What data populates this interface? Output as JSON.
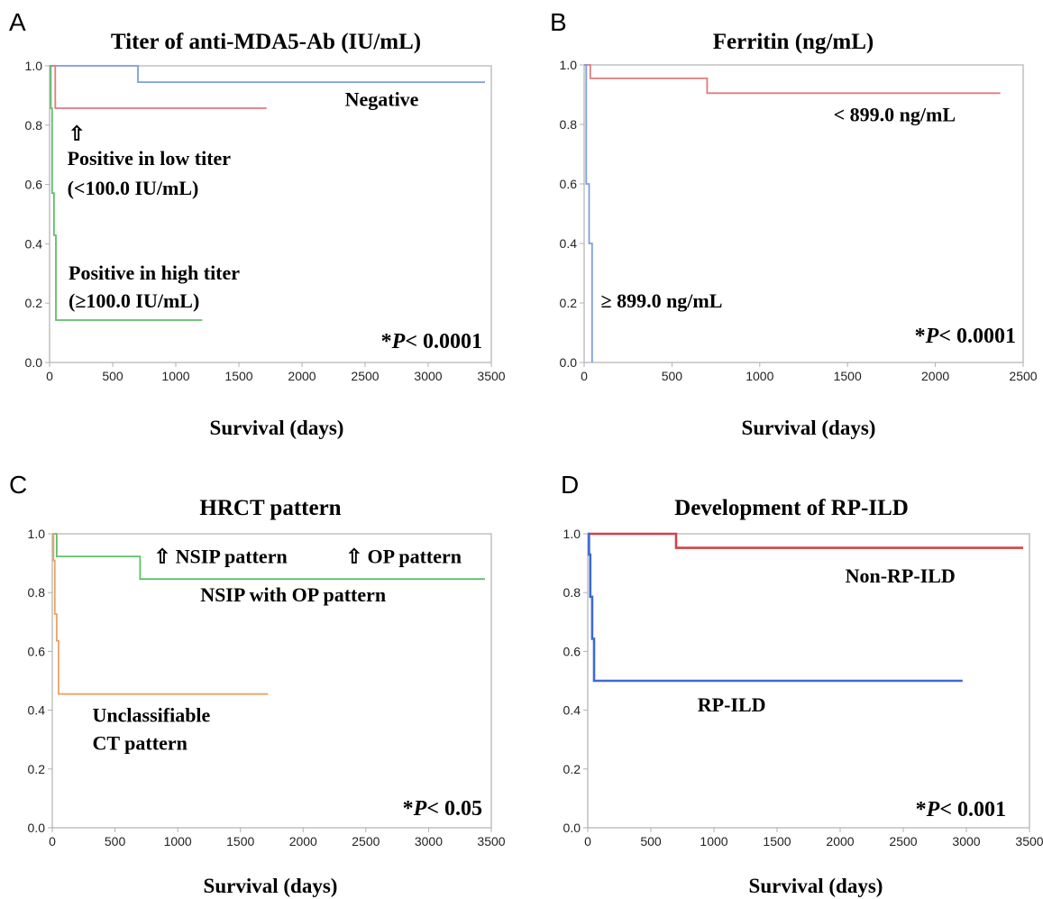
{
  "chart_data": [
    {
      "panel": "A",
      "type": "line",
      "title": "Titer of anti-MDA5-Ab (IU/mL)",
      "xlabel": "Survival (days)",
      "ylabel": "",
      "xlim": [
        0,
        3500
      ],
      "ylim": [
        0,
        1.0
      ],
      "xticks": [
        "0",
        "500",
        "1000",
        "1500",
        "2000",
        "2500",
        "3000",
        "3500"
      ],
      "yticks": [
        "0.0",
        "0.2",
        "0.4",
        "0.6",
        "0.8",
        "1.0"
      ],
      "pvalue": {
        "prefix": "*",
        "italic": "P",
        "suffix": "< 0.0001"
      },
      "series": [
        {
          "name": "Negative",
          "color": "#7c9fe2",
          "points": [
            [
              0,
              1.0
            ],
            [
              700,
              1.0
            ],
            [
              700,
              0.945
            ],
            [
              3450,
              0.945
            ]
          ]
        },
        {
          "name": "Positive in low titer",
          "color": "#e07b7f",
          "points": [
            [
              0,
              1.0
            ],
            [
              45,
              1.0
            ],
            [
              45,
              0.857
            ],
            [
              1720,
              0.857
            ]
          ]
        },
        {
          "name": "Positive in high titer",
          "color": "#5fbf6a",
          "points": [
            [
              0,
              1.0
            ],
            [
              10,
              1.0
            ],
            [
              10,
              0.857
            ],
            [
              20,
              0.857
            ],
            [
              20,
              0.571
            ],
            [
              35,
              0.571
            ],
            [
              35,
              0.429
            ],
            [
              50,
              0.429
            ],
            [
              50,
              0.143
            ],
            [
              1210,
              0.143
            ]
          ]
        }
      ],
      "annotations": [
        {
          "text": "Negative",
          "x": 2340,
          "y": 0.865
        },
        {
          "text": "⇧",
          "x": 150,
          "y": 0.75
        },
        {
          "text": "Positive in low titer",
          "x": 140,
          "y": 0.665
        },
        {
          "text": "(<100.0 IU/mL)",
          "x": 140,
          "y": 0.565
        },
        {
          "text": "Positive in high titer",
          "x": 150,
          "y": 0.28
        },
        {
          "text": "(≥100.0 IU/mL)",
          "x": 150,
          "y": 0.185
        }
      ]
    },
    {
      "panel": "B",
      "type": "line",
      "title": "Ferritin (ng/mL)",
      "xlabel": "Survival (days)",
      "ylabel": "",
      "xlim": [
        0,
        2500
      ],
      "ylim": [
        0,
        1.0
      ],
      "xticks": [
        "0",
        "500",
        "1000",
        "1500",
        "2000",
        "2500"
      ],
      "yticks": [
        "0.0",
        "0.2",
        "0.4",
        "0.6",
        "0.8",
        "1.0"
      ],
      "pvalue": {
        "prefix": "*",
        "italic": "P",
        "suffix": "< 0.0001"
      },
      "series": [
        {
          "name": "< 899.0 ng/mL",
          "color": "#e07b7f",
          "points": [
            [
              0,
              1.0
            ],
            [
              35,
              1.0
            ],
            [
              35,
              0.955
            ],
            [
              700,
              0.955
            ],
            [
              700,
              0.905
            ],
            [
              2370,
              0.905
            ]
          ]
        },
        {
          "name": "≥ 899.0 ng/mL",
          "color": "#7c9fe2",
          "points": [
            [
              0,
              1.0
            ],
            [
              12,
              1.0
            ],
            [
              12,
              0.6
            ],
            [
              28,
              0.6
            ],
            [
              28,
              0.4
            ],
            [
              45,
              0.4
            ],
            [
              45,
              0.0
            ]
          ]
        }
      ],
      "annotations": [
        {
          "text": "< 899.0 ng/mL",
          "x": 1420,
          "y": 0.81
        },
        {
          "text": "≥ 899.0 ng/mL",
          "x": 95,
          "y": 0.185
        }
      ]
    },
    {
      "panel": "C",
      "type": "line",
      "title": "HRCT pattern",
      "xlabel": "Survival (days)",
      "ylabel": "",
      "xlim": [
        0,
        3500
      ],
      "ylim": [
        0,
        1.0
      ],
      "xticks": [
        "0",
        "500",
        "1000",
        "1500",
        "2000",
        "2500",
        "3000",
        "3500"
      ],
      "yticks": [
        "0.0",
        "0.2",
        "0.4",
        "0.6",
        "0.8",
        "1.0"
      ],
      "pvalue": {
        "prefix": "*",
        "italic": "P",
        "suffix": "< 0.05"
      },
      "series": [
        {
          "name": "NSIP with OP pattern",
          "color": "#5fbf6a",
          "points": [
            [
              0,
              1.0
            ],
            [
              35,
              1.0
            ],
            [
              35,
              0.923
            ],
            [
              700,
              0.923
            ],
            [
              700,
              0.846
            ],
            [
              3450,
              0.846
            ]
          ]
        },
        {
          "name": "Unclassifiable CT pattern",
          "color": "#e9a463",
          "points": [
            [
              0,
              1.0
            ],
            [
              10,
              1.0
            ],
            [
              10,
              0.909
            ],
            [
              20,
              0.909
            ],
            [
              20,
              0.727
            ],
            [
              35,
              0.727
            ],
            [
              35,
              0.636
            ],
            [
              50,
              0.636
            ],
            [
              50,
              0.455
            ],
            [
              1720,
              0.455
            ]
          ]
        }
      ],
      "annotations": [
        {
          "text": "⇧ NSIP pattern",
          "x": 810,
          "y": 0.9
        },
        {
          "text": "⇧ OP pattern",
          "x": 2340,
          "y": 0.9
        },
        {
          "text": "NSIP with OP pattern",
          "x": 1180,
          "y": 0.77
        },
        {
          "text": "Unclassifiable",
          "x": 320,
          "y": 0.36
        },
        {
          "text": "CT pattern",
          "x": 320,
          "y": 0.265
        }
      ]
    },
    {
      "panel": "D",
      "type": "line",
      "title": "Development of RP-ILD",
      "xlabel": "Survival  (days)",
      "ylabel": "",
      "xlim": [
        0,
        3500
      ],
      "ylim": [
        0,
        1.0
      ],
      "xticks": [
        "0",
        "500",
        "1000",
        "1500",
        "2000",
        "2500",
        "3000",
        "3500"
      ],
      "yticks": [
        "0.0",
        "0.2",
        "0.4",
        "0.6",
        "0.8",
        "1.0"
      ],
      "pvalue": {
        "prefix": "*",
        "italic": "P",
        "suffix": "< 0.001"
      },
      "series": [
        {
          "name": "Non-RP-ILD",
          "color": "#d0434a",
          "points": [
            [
              0,
              1.0
            ],
            [
              700,
              1.0
            ],
            [
              700,
              0.952
            ],
            [
              3450,
              0.952
            ]
          ]
        },
        {
          "name": "RP-ILD",
          "color": "#3d6ad6",
          "points": [
            [
              0,
              1.0
            ],
            [
              10,
              1.0
            ],
            [
              10,
              0.929
            ],
            [
              20,
              0.929
            ],
            [
              20,
              0.786
            ],
            [
              35,
              0.786
            ],
            [
              35,
              0.643
            ],
            [
              50,
              0.643
            ],
            [
              50,
              0.5
            ],
            [
              2970,
              0.5
            ]
          ]
        }
      ],
      "annotations": [
        {
          "text": "Non-RP-ILD",
          "x": 2040,
          "y": 0.835
        },
        {
          "text": "RP-ILD",
          "x": 870,
          "y": 0.395
        }
      ]
    }
  ]
}
